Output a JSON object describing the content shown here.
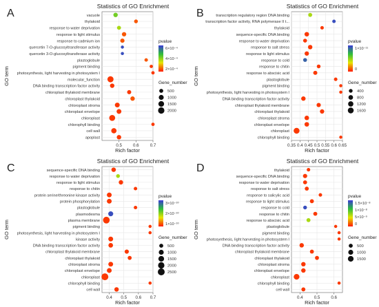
{
  "chart_data": [
    {
      "panel_label": "A",
      "type": "scatter",
      "title": "Statistics of GO Enrichment",
      "xlabel": "Rich factor",
      "ylabel": "GO term",
      "xlim": [
        0.4,
        0.7
      ],
      "xticks": [
        "0.5",
        "0.6",
        "0.7"
      ],
      "grid": true,
      "color_legend": {
        "title": "pvalue",
        "ticks": [
          "6×10⁻⁴",
          "4×10⁻⁴",
          "2×10⁻⁴"
        ]
      },
      "size_legend": {
        "title": "Gene_number",
        "ticks": [
          "500",
          "1000",
          "1500",
          "2000"
        ]
      },
      "categories": [
        "vacuole",
        "thylakoid",
        "response to water deprivation",
        "response to light stimulus",
        "response to cadmium ion",
        "quercetin 7-O-glucosyltransferase activity",
        "quercetin 3-O-glucosyltransferase activity",
        "plastoglobule",
        "pigment binding",
        "photosynthesis, light harvesting in photosystem I",
        "molecular_function",
        "DNA binding transcription factor activity",
        "chloroplast thylakoid membrane",
        "chloroplast thylakoid",
        "chloroplast stroma",
        "chloroplast envelope",
        "chloroplast",
        "chlorophyll binding",
        "cell wall",
        "apoplast"
      ],
      "x": [
        0.48,
        0.6,
        0.5,
        0.53,
        0.52,
        0.52,
        0.52,
        0.66,
        0.69,
        0.7,
        0.45,
        0.46,
        0.56,
        0.58,
        0.49,
        0.5,
        0.46,
        0.7,
        0.47,
        0.5
      ],
      "gene_number": [
        700,
        400,
        500,
        650,
        600,
        200,
        200,
        300,
        250,
        250,
        1800,
        700,
        550,
        700,
        900,
        900,
        1700,
        250,
        1200,
        700
      ],
      "pvalue_level": [
        0.55,
        0.1,
        0.45,
        0.1,
        0.1,
        0.95,
        0.95,
        0.1,
        0.05,
        0.05,
        0.05,
        0.05,
        0.05,
        0.1,
        0.05,
        0.05,
        0.05,
        0.05,
        0.05,
        0.05
      ]
    },
    {
      "panel_label": "B",
      "type": "scatter",
      "title": "Statistics of GO Enrichment",
      "xlabel": "Rich factor",
      "ylabel": "GO term",
      "xlim": [
        0.35,
        0.65
      ],
      "xticks": [
        "0.35",
        "0.4",
        "0.45",
        "0.5",
        "0.55",
        "0.6",
        "0.65"
      ],
      "grid": true,
      "color_legend": {
        "title": "pvalue",
        "ticks": [
          "1×10⁻¹¹",
          "0"
        ]
      },
      "size_legend": {
        "title": "Gene_number",
        "ticks": [
          "400",
          "800",
          "1200",
          "1600"
        ]
      },
      "categories": [
        "transcription regulatory region DNA binding",
        "transcription factor activity, RNA polymerase II t...",
        "thylakoid",
        "sequence-specific DNA binding",
        "response to water deprivation",
        "response to salt stress",
        "response to light stimulus",
        "response to cold",
        "response to chitin",
        "response to abscisic acid",
        "plastoglobule",
        "pigment binding",
        "photosynthesis, light harvesting in photosystem I",
        "DNA binding transcription factor activity",
        "chloroplast thylakoid membrane",
        "chloroplast thylakoid",
        "chloroplast stroma",
        "chloroplast envelope",
        "chloroplast",
        "chlorophyll binding"
      ],
      "x": [
        0.46,
        0.6,
        0.53,
        0.44,
        0.43,
        0.46,
        0.44,
        0.43,
        0.51,
        0.49,
        0.61,
        0.64,
        0.64,
        0.42,
        0.51,
        0.53,
        0.44,
        0.44,
        0.38,
        0.64
      ],
      "gene_number": [
        500,
        300,
        300,
        750,
        450,
        700,
        650,
        450,
        400,
        550,
        300,
        200,
        200,
        700,
        600,
        650,
        750,
        750,
        1600,
        200
      ],
      "pvalue_level": [
        0.45,
        0.95,
        0.05,
        0.05,
        0.05,
        0.05,
        0.05,
        0.9,
        0.05,
        0.05,
        0.05,
        0.05,
        0.05,
        0.05,
        0.05,
        0.05,
        0.05,
        0.05,
        0.05,
        0.05
      ]
    },
    {
      "panel_label": "C",
      "type": "scatter",
      "title": "Statistics of GO Enrichment",
      "xlabel": "Rich factor",
      "ylabel": "GO term",
      "xlim": [
        0.35,
        0.7
      ],
      "xticks": [
        "0.4",
        "0.5",
        "0.6",
        "0.7"
      ],
      "grid": true,
      "color_legend": {
        "title": "pvalue",
        "ticks": [
          "3×10⁻¹⁰",
          "2×10⁻¹⁰",
          "1×10⁻¹⁰"
        ]
      },
      "size_legend": {
        "title": "Gene_number",
        "ticks": [
          "500",
          "1000",
          "1500",
          "2000",
          "2500"
        ]
      },
      "categories": [
        "sequence-specific DNA binding",
        "response to water deprivation",
        "response to light stimulus",
        "response to chitin",
        "protein serine/threonine kinase activity",
        "protein phosphorylation",
        "plastoglobule",
        "plasmodesma",
        "plasma membrane",
        "pigment binding",
        "photosynthesis, light harvesting in photosystem I",
        "kinase activity",
        "DNA binding transcription factor activity",
        "chloroplast thylakoid membrane",
        "chloroplast thylakoid",
        "chloroplast stroma",
        "chloroplast envelope",
        "chloroplast",
        "chlorophyll binding",
        "cell wall"
      ],
      "x": [
        0.43,
        0.46,
        0.48,
        0.58,
        0.4,
        0.4,
        0.58,
        0.41,
        0.38,
        0.68,
        0.68,
        0.41,
        0.41,
        0.52,
        0.54,
        0.41,
        0.4,
        0.37,
        0.68,
        0.45
      ],
      "gene_number": [
        700,
        400,
        700,
        300,
        900,
        900,
        300,
        1000,
        2300,
        200,
        200,
        900,
        800,
        600,
        500,
        900,
        900,
        2500,
        200,
        700
      ],
      "pvalue_level": [
        0.05,
        0.45,
        0.05,
        0.05,
        0.05,
        0.05,
        0.05,
        0.95,
        0.05,
        0.05,
        0.05,
        0.05,
        0.05,
        0.05,
        0.05,
        0.05,
        0.05,
        0.05,
        0.05,
        0.05
      ]
    },
    {
      "panel_label": "D",
      "type": "scatter",
      "title": "Statistics of GO Enrichment",
      "xlabel": "Rich factor",
      "ylabel": "GO term",
      "xlim": [
        0.35,
        0.65
      ],
      "xticks": [
        "0.4",
        "0.5",
        "0.6"
      ],
      "grid": true,
      "color_legend": {
        "title": "pvalue",
        "ticks": [
          "1.5×10⁻⁸",
          "1×10⁻⁸",
          "5×10⁻⁹",
          "0"
        ]
      },
      "size_legend": {
        "title": "Gene_number",
        "ticks": [
          "500",
          "1000",
          "1500"
        ]
      },
      "categories": [
        "thylakoid",
        "sequence-specific DNA binding",
        "response to water deprivation",
        "response to salt stress",
        "response to salicylic acid",
        "response to light stimulus",
        "response to cold",
        "response to chitin",
        "response to abscisic acid",
        "plastoglobule",
        "pigment binding",
        "photosynthesis, light harvesting in photosystem I",
        "DNA binding transcription factor activity",
        "chloroplast thylakoid membrane",
        "chloroplast thylakoid",
        "chloroplast stroma",
        "chloroplast envelope",
        "chloroplast",
        "chlorophyll binding",
        "cell wall"
      ],
      "x": [
        0.45,
        0.43,
        0.43,
        0.44,
        0.52,
        0.47,
        0.43,
        0.49,
        0.45,
        0.61,
        0.63,
        0.63,
        0.41,
        0.47,
        0.5,
        0.42,
        0.42,
        0.38,
        0.63,
        0.42
      ],
      "gene_number": [
        300,
        600,
        500,
        500,
        300,
        500,
        400,
        500,
        500,
        200,
        200,
        200,
        700,
        500,
        500,
        700,
        700,
        1500,
        200,
        500
      ],
      "pvalue_level": [
        0.05,
        0.05,
        0.05,
        0.05,
        0.05,
        0.05,
        0.95,
        0.05,
        0.45,
        0.05,
        0.05,
        0.05,
        0.05,
        0.05,
        0.05,
        0.05,
        0.05,
        0.05,
        0.05,
        0.05
      ]
    }
  ]
}
